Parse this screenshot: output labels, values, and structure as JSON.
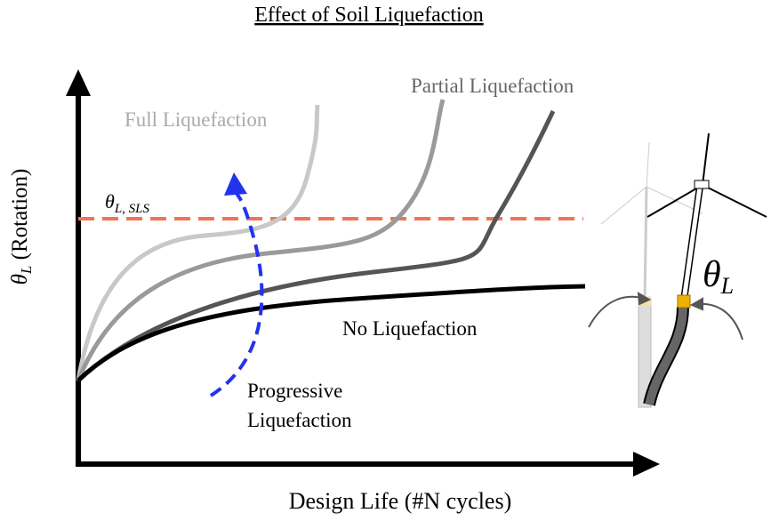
{
  "title": "Effect of Soil Liquefaction",
  "x_axis_label": "Design Life (#N cycles)",
  "y_axis_label": {
    "symbol": "θ",
    "subscript": "L",
    "text": " (Rotation)"
  },
  "threshold_label": {
    "symbol": "θ",
    "subscript": "L, SLS"
  },
  "curve_labels": {
    "full": "Full Liquefaction",
    "partial": "Partial Liquefaction",
    "none": "No Liquefaction"
  },
  "annotation": [
    "Progressive",
    "Liquefaction"
  ],
  "rotation_label": {
    "symbol": "θ",
    "subscript": "L"
  }
}
